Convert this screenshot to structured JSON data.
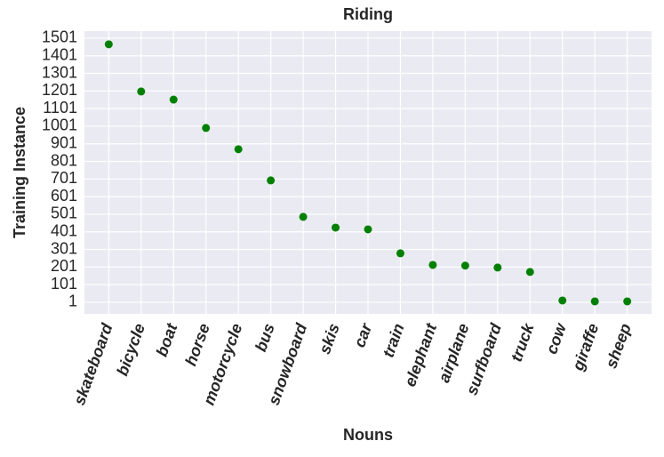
{
  "chart_data": {
    "type": "scatter",
    "title": "Riding",
    "x_label": "Nouns",
    "y_label": "Training Instance",
    "categories": [
      "skateboard",
      "bicycle",
      "boat",
      "horse",
      "motorcycle",
      "bus",
      "snowboard",
      "skis",
      "car",
      "train",
      "elephant",
      "airplane",
      "surfboard",
      "truck",
      "cow",
      "giraffe",
      "sheep"
    ],
    "values": [
      1466,
      1198,
      1152,
      991,
      870,
      693,
      486,
      425,
      415,
      279,
      213,
      209,
      198,
      173,
      11,
      6,
      6
    ],
    "color": "#008000",
    "ylim": [
      -65,
      1541
    ],
    "yticks": [
      1,
      101,
      201,
      301,
      401,
      501,
      601,
      701,
      801,
      901,
      1001,
      1101,
      1201,
      1301,
      1401,
      1501
    ],
    "grid": true
  }
}
